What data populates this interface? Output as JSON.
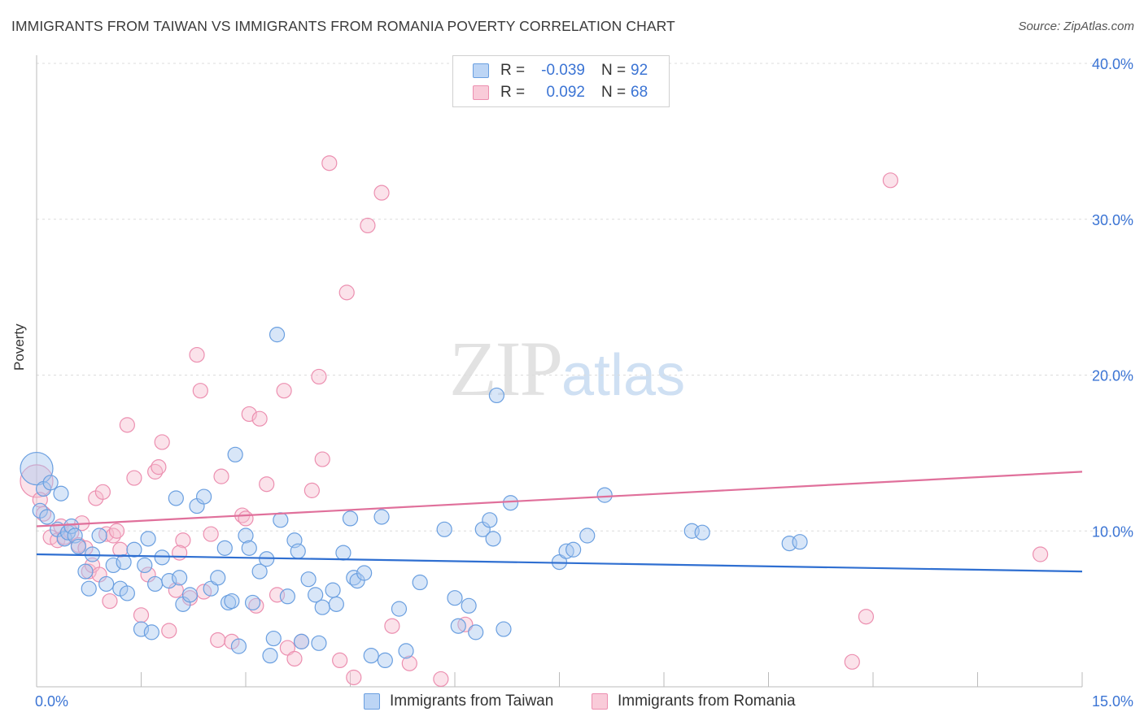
{
  "title": "IMMIGRANTS FROM TAIWAN VS IMMIGRANTS FROM ROMANIA POVERTY CORRELATION CHART",
  "source": "Source: ZipAtlas.com",
  "watermark": {
    "zip": "ZIP",
    "atlas": "atlas"
  },
  "legend": {
    "rows": [
      {
        "r_label": "R =",
        "r_value": "-0.039",
        "n_label": "N =",
        "n_value": "92"
      },
      {
        "r_label": "R =",
        "r_value": "0.092",
        "n_label": "N =",
        "n_value": "68"
      }
    ]
  },
  "colors": {
    "taiwan_fill": "#a9c8f0",
    "taiwan_stroke": "#6a9fe0",
    "taiwan_line": "#2f6fd1",
    "romania_fill": "#f6bfd0",
    "romania_stroke": "#ec8fb0",
    "romania_line": "#e0709b",
    "axis_label": "#3b74d4",
    "grid": "#dcdcdc"
  },
  "chart_data": {
    "type": "scatter",
    "title": "IMMIGRANTS FROM TAIWAN VS IMMIGRANTS FROM ROMANIA POVERTY CORRELATION CHART",
    "xlabel": "",
    "ylabel": "Poverty",
    "xlim": [
      0,
      15
    ],
    "ylim": [
      0,
      40
    ],
    "x_ticks": [
      "0.0%",
      "15.0%"
    ],
    "y_ticks": [
      {
        "value": 10,
        "label": "10.0%"
      },
      {
        "value": 20,
        "label": "20.0%"
      },
      {
        "value": 30,
        "label": "30.0%"
      },
      {
        "value": 40,
        "label": "40.0%"
      }
    ],
    "grid": true,
    "legend_position": "bottom",
    "series": [
      {
        "name": "Immigrants from Taiwan",
        "trend": [
          [
            0,
            8.5
          ],
          [
            15,
            7.4
          ]
        ],
        "points": [
          [
            0.0,
            14.0
          ],
          [
            0.1,
            12.7
          ],
          [
            0.2,
            13.1
          ],
          [
            0.05,
            11.3
          ],
          [
            0.3,
            10.1
          ],
          [
            0.4,
            9.5
          ],
          [
            0.45,
            9.9
          ],
          [
            0.5,
            10.3
          ],
          [
            0.55,
            9.7
          ],
          [
            0.6,
            9.0
          ],
          [
            0.7,
            7.4
          ],
          [
            0.75,
            6.3
          ],
          [
            0.8,
            8.5
          ],
          [
            0.9,
            9.7
          ],
          [
            1.0,
            6.6
          ],
          [
            1.1,
            7.8
          ],
          [
            1.2,
            6.3
          ],
          [
            1.3,
            6.0
          ],
          [
            1.4,
            8.8
          ],
          [
            1.5,
            3.7
          ],
          [
            1.6,
            9.5
          ],
          [
            1.7,
            6.6
          ],
          [
            1.8,
            8.3
          ],
          [
            1.9,
            6.8
          ],
          [
            2.0,
            12.1
          ],
          [
            2.1,
            5.3
          ],
          [
            2.2,
            5.9
          ],
          [
            2.3,
            11.6
          ],
          [
            2.4,
            12.2
          ],
          [
            2.5,
            6.3
          ],
          [
            2.6,
            7.0
          ],
          [
            2.7,
            8.9
          ],
          [
            2.75,
            5.4
          ],
          [
            2.8,
            5.5
          ],
          [
            2.85,
            14.9
          ],
          [
            2.9,
            2.6
          ],
          [
            3.0,
            9.7
          ],
          [
            3.1,
            5.4
          ],
          [
            3.2,
            7.4
          ],
          [
            3.3,
            8.2
          ],
          [
            3.35,
            2.0
          ],
          [
            3.4,
            3.1
          ],
          [
            3.5,
            10.7
          ],
          [
            3.6,
            5.8
          ],
          [
            3.7,
            9.4
          ],
          [
            3.75,
            8.7
          ],
          [
            3.8,
            2.9
          ],
          [
            3.9,
            6.9
          ],
          [
            3.45,
            22.6
          ],
          [
            4.0,
            5.9
          ],
          [
            4.05,
            2.8
          ],
          [
            4.1,
            5.1
          ],
          [
            4.3,
            5.3
          ],
          [
            4.4,
            8.6
          ],
          [
            4.5,
            10.8
          ],
          [
            4.55,
            7.0
          ],
          [
            4.6,
            6.8
          ],
          [
            4.7,
            7.3
          ],
          [
            4.8,
            2.0
          ],
          [
            5.0,
            1.7
          ],
          [
            5.2,
            5.0
          ],
          [
            5.3,
            2.3
          ],
          [
            5.5,
            6.7
          ],
          [
            5.85,
            10.1
          ],
          [
            6.0,
            5.7
          ],
          [
            6.05,
            3.9
          ],
          [
            6.2,
            5.2
          ],
          [
            6.3,
            3.5
          ],
          [
            6.4,
            10.1
          ],
          [
            6.5,
            10.7
          ],
          [
            6.55,
            9.5
          ],
          [
            6.6,
            18.7
          ],
          [
            6.7,
            3.7
          ],
          [
            6.8,
            11.8
          ],
          [
            7.5,
            8.0
          ],
          [
            7.6,
            8.7
          ],
          [
            7.7,
            8.8
          ],
          [
            7.9,
            9.7
          ],
          [
            8.15,
            12.3
          ],
          [
            9.4,
            10.0
          ],
          [
            9.55,
            9.9
          ],
          [
            10.8,
            9.2
          ],
          [
            10.95,
            9.3
          ],
          [
            1.65,
            3.5
          ],
          [
            0.35,
            12.4
          ],
          [
            0.15,
            10.9
          ],
          [
            1.25,
            8.0
          ],
          [
            1.55,
            7.8
          ],
          [
            2.05,
            7.0
          ],
          [
            4.95,
            10.9
          ],
          [
            3.05,
            8.9
          ],
          [
            4.25,
            6.2
          ]
        ]
      },
      {
        "name": "Immigrants from Romania",
        "trend": [
          [
            0,
            10.3
          ],
          [
            15,
            13.8
          ]
        ],
        "points": [
          [
            0.0,
            13.2
          ],
          [
            0.05,
            12.0
          ],
          [
            0.1,
            11.1
          ],
          [
            0.2,
            9.6
          ],
          [
            0.3,
            9.4
          ],
          [
            0.35,
            10.3
          ],
          [
            0.4,
            9.6
          ],
          [
            0.5,
            9.9
          ],
          [
            0.6,
            9.1
          ],
          [
            0.65,
            10.5
          ],
          [
            0.7,
            8.9
          ],
          [
            0.75,
            7.4
          ],
          [
            0.8,
            7.8
          ],
          [
            0.85,
            12.1
          ],
          [
            0.9,
            7.2
          ],
          [
            0.95,
            12.5
          ],
          [
            1.0,
            9.8
          ],
          [
            1.05,
            5.5
          ],
          [
            1.1,
            9.7
          ],
          [
            1.2,
            8.8
          ],
          [
            1.3,
            16.8
          ],
          [
            1.4,
            13.4
          ],
          [
            1.5,
            4.6
          ],
          [
            1.6,
            7.2
          ],
          [
            1.7,
            13.8
          ],
          [
            1.75,
            14.1
          ],
          [
            1.8,
            15.7
          ],
          [
            1.9,
            3.6
          ],
          [
            2.0,
            6.2
          ],
          [
            2.1,
            9.4
          ],
          [
            2.2,
            5.7
          ],
          [
            2.3,
            21.3
          ],
          [
            2.35,
            19.0
          ],
          [
            2.4,
            6.1
          ],
          [
            2.5,
            9.8
          ],
          [
            2.6,
            3.0
          ],
          [
            2.65,
            13.5
          ],
          [
            2.8,
            2.9
          ],
          [
            2.95,
            11.0
          ],
          [
            3.0,
            10.8
          ],
          [
            3.05,
            17.5
          ],
          [
            3.2,
            17.2
          ],
          [
            3.3,
            13.0
          ],
          [
            3.45,
            5.9
          ],
          [
            3.55,
            19.0
          ],
          [
            3.6,
            2.5
          ],
          [
            3.7,
            1.8
          ],
          [
            3.8,
            2.9
          ],
          [
            3.95,
            12.6
          ],
          [
            4.05,
            19.9
          ],
          [
            4.1,
            14.6
          ],
          [
            4.2,
            33.6
          ],
          [
            4.35,
            1.7
          ],
          [
            4.45,
            25.3
          ],
          [
            4.55,
            0.6
          ],
          [
            4.75,
            29.6
          ],
          [
            4.95,
            31.7
          ],
          [
            5.1,
            3.9
          ],
          [
            5.35,
            1.5
          ],
          [
            5.8,
            0.5
          ],
          [
            6.15,
            4.0
          ],
          [
            12.25,
            32.5
          ],
          [
            11.9,
            4.5
          ],
          [
            11.7,
            1.6
          ],
          [
            14.4,
            8.5
          ],
          [
            3.15,
            5.2
          ],
          [
            2.05,
            8.6
          ],
          [
            1.15,
            10.0
          ]
        ]
      }
    ]
  },
  "bottom_legend": [
    {
      "label": "Immigrants from Taiwan"
    },
    {
      "label": "Immigrants from Romania"
    }
  ]
}
